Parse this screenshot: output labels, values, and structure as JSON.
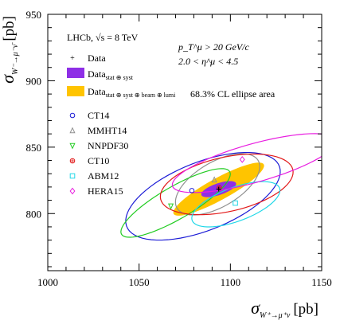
{
  "chart_data": {
    "type": "scatter",
    "experiment": "LHCb, √s = 8 TeV",
    "xlabel": {
      "symbol": "σ",
      "subscript": "W⁺→μ⁺ν",
      "unit": "[pb]"
    },
    "ylabel": {
      "symbol": "σ",
      "subscript": "W⁻→μ⁻ν̄",
      "unit": "[pb]"
    },
    "xlim": [
      1000,
      1150
    ],
    "ylim": [
      757,
      950
    ],
    "xticks": [
      "1000",
      "1050",
      "1100",
      "1150"
    ],
    "yticks": [
      "800",
      "850",
      "900",
      "950"
    ],
    "cuts": {
      "line1": "p_T^μ > 20 GeV/c",
      "line2": "2.0 < η^μ < 4.5"
    },
    "ellipse_note": "68.3% CL ellipse area",
    "data_point": {
      "label": "Data",
      "x": 1093.6,
      "y": 818.4
    },
    "data_ellipses": [
      {
        "label": "Data",
        "label_sub": "stat ⊕ syst",
        "color": "#8e2fe6",
        "cx": 1093.6,
        "cy": 818.4,
        "rx": 10.5,
        "ry": 4.2,
        "angle_deg": 27
      },
      {
        "label": "Data",
        "label_sub": "stat ⊕ syst ⊕ beam ⊕ lumi",
        "color": "#ffc400",
        "cx": 1093.6,
        "cy": 818.4,
        "rx": 31,
        "ry": 7.5,
        "angle_deg": 38
      }
    ],
    "series": [
      {
        "name": "CT14",
        "marker": "circle",
        "color": "#1c1cd6",
        "x": 1078.9,
        "y": 817.3,
        "ellipse": {
          "cx": 1085,
          "cy": 813,
          "rx": 48,
          "ry": 24,
          "angle_deg": 33
        }
      },
      {
        "name": "MMHT14",
        "marker": "triangle-up",
        "color": "#909090",
        "x": 1091.2,
        "y": 825.4,
        "ellipse": {
          "cx": 1093,
          "cy": 822,
          "rx": 29,
          "ry": 15,
          "angle_deg": 45
        }
      },
      {
        "name": "NNPDF30",
        "marker": "triangle-down",
        "color": "#22cc22",
        "x": 1067.4,
        "y": 805.6,
        "ellipse": {
          "cx": 1070,
          "cy": 808,
          "rx": 38,
          "ry": 11,
          "angle_deg": 40
        }
      },
      {
        "name": "CT10",
        "marker": "circle-cross",
        "color": "#e21818",
        "x": 1093.9,
        "y": 819.5,
        "ellipse": {
          "cx": 1098,
          "cy": 822,
          "rx": 38,
          "ry": 20,
          "angle_deg": 20
        }
      },
      {
        "name": "ABM12",
        "marker": "square",
        "color": "#22d8e8",
        "x": 1102.7,
        "y": 807.9,
        "ellipse": {
          "cx": 1103,
          "cy": 807,
          "rx": 27,
          "ry": 12,
          "angle_deg": 30
        }
      },
      {
        "name": "HERA15",
        "marker": "diamond",
        "color": "#e81ce0",
        "x": 1106.5,
        "y": 840.7,
        "ellipse": {
          "cx": 1113,
          "cy": 838,
          "rx": 48,
          "ry": 14,
          "angle_deg": 22
        }
      }
    ]
  }
}
